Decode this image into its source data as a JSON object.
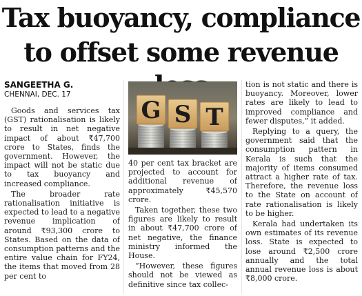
{
  "headline": {
    "line1": "Tax buoyancy, compliance",
    "line2": "to offset some revenue loss"
  },
  "byline": {
    "author": "SANGEETHA G.",
    "dateline": "CHENNAI, DEC. 17"
  },
  "photo": {
    "letters": [
      "G",
      "S",
      "T"
    ],
    "icon": "gst-coin-stacks-photo"
  },
  "article": {
    "col1": [
      "Goods and services tax (GST) rationalisation is likely to result in net negative impact of about ₹47,700 crore to States, finds the government. However, the impact will not be static due to tax buoyancy and increased compliance.",
      "The broader rate rationalisation initiative is expected to lead to a negative revenue implication of around ₹93,300 crore to States. Based on the data of consumption patterns and the entire value chain for FY24, the items that moved from 28 per cent to"
    ],
    "col2": [
      "40 per cent tax bracket are projected to account for additional revenue of approximately ₹45,570 crore.",
      "Taken together, these two figures are likely to result in about ₹47,700 crore of net negative, the finance ministry informed the House.",
      "“However, these figures should not be viewed as definitive since tax collec-"
    ],
    "col3": [
      "tion is not static and there is buoyancy. Moreover, lower rates are likely to lead to improved compliance and fewer disputes,” it added.",
      "Replying to a query, the government said that the consumption pattern in Kerala is such that the majority of items consumed attract a higher rate of tax. Therefore, the revenue loss to the State on account of rate rationalisation is likely to be higher.",
      "Kerala had undertaken its own estimates of its revenue loss. State is expected to lose around ₹2,500 crore annually and the total annual revenue loss is about ₹8,000 crore."
    ]
  }
}
